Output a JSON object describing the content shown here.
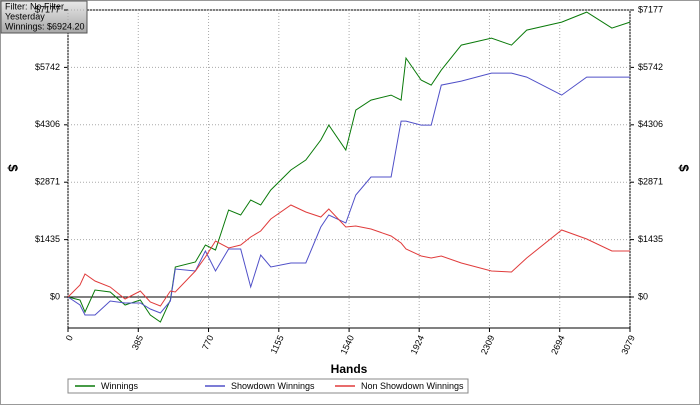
{
  "chart_data": {
    "type": "line",
    "annotations": [
      "Filter: No Filter",
      "Yesterday",
      "Winnings: $6924.20"
    ],
    "x_label": "Hands",
    "y_label": "$",
    "x": [
      0,
      66,
      93,
      148,
      231,
      313,
      396,
      451,
      506,
      561,
      588,
      698,
      753,
      808,
      880,
      946,
      1001,
      1056,
      1111,
      1221,
      1303,
      1385,
      1429,
      1522,
      1577,
      1660,
      1770,
      1825,
      1852,
      1935,
      1990,
      2045,
      2155,
      2320,
      2430,
      2513,
      2705,
      2842,
      2980,
      3079
    ],
    "series": [
      {
        "name": "Winnings",
        "color": "#0a7a0a",
        "values": [
          0,
          -75,
          -375,
          175,
          125,
          -200,
          -75,
          -450,
          -625,
          -75,
          750,
          875,
          1300,
          1175,
          2175,
          2050,
          2425,
          2300,
          2675,
          3175,
          3425,
          3925,
          4300,
          3675,
          4675,
          4925,
          5050,
          4925,
          5975,
          5425,
          5300,
          5675,
          6300,
          6475,
          6300,
          6675,
          6875,
          7125,
          6725,
          6875
        ]
      },
      {
        "name": "Showdown Winnings",
        "color": "#5050c8",
        "values": [
          0,
          -200,
          -450,
          -450,
          -100,
          -150,
          -150,
          -300,
          -400,
          -100,
          700,
          650,
          1150,
          650,
          1200,
          1200,
          250,
          1050,
          750,
          850,
          850,
          1750,
          2050,
          1850,
          2550,
          3000,
          3000,
          4400,
          4400,
          4300,
          4300,
          5300,
          5400,
          5600,
          5600,
          5500,
          5050,
          5500,
          5500,
          5500
        ]
      },
      {
        "name": "Non Showdown Winnings",
        "color": "#e03c3c",
        "values": [
          0,
          300,
          575,
          400,
          250,
          -50,
          150,
          -125,
          -225,
          150,
          125,
          650,
          1000,
          1400,
          1225,
          1300,
          1500,
          1650,
          1950,
          2300,
          2125,
          2000,
          2200,
          1750,
          1775,
          1700,
          1525,
          1350,
          1200,
          1025,
          975,
          1025,
          850,
          650,
          625,
          975,
          1675,
          1450,
          1150,
          1150
        ]
      }
    ],
    "xlim": [
      0,
      3079
    ],
    "xticks": [
      0,
      385,
      770,
      1155,
      1540,
      1924,
      2309,
      2694,
      3079
    ],
    "ylim": [
      -775,
      7177
    ],
    "yticks": [
      {
        "value": 0,
        "label": "$0"
      },
      {
        "value": 1435,
        "label": "$1435"
      },
      {
        "value": 2871,
        "label": "$2871"
      },
      {
        "value": 4306,
        "label": "$4306"
      },
      {
        "value": 5742,
        "label": "$5742"
      },
      {
        "value": 7177,
        "label": "$7177"
      }
    ],
    "grid": true
  }
}
